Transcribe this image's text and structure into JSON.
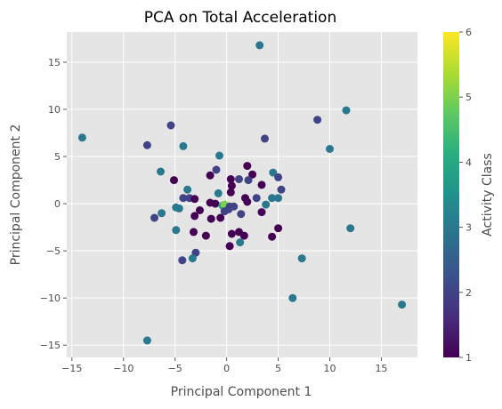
{
  "chart_data": {
    "type": "scatter",
    "title": "PCA on Total Acceleration",
    "xlabel": "Principal Component 1",
    "ylabel": "Principal Component 2",
    "xlim": [
      -15.5,
      18.5
    ],
    "ylim": [
      -16.3,
      18.2
    ],
    "xticks": [
      -15,
      -10,
      -5,
      0,
      5,
      10,
      15
    ],
    "yticks": [
      -15,
      -10,
      -5,
      0,
      5,
      10,
      15
    ],
    "grid": true,
    "colormap": "viridis",
    "colorbar": {
      "label": "Activity Class",
      "min": 1,
      "max": 6,
      "ticks": [
        1,
        2,
        3,
        4,
        5,
        6
      ]
    },
    "background": "#e5e5e5",
    "points": [
      {
        "x": 3.2,
        "y": 16.8,
        "c": 3
      },
      {
        "x": -14.0,
        "y": 7.0,
        "c": 3
      },
      {
        "x": 11.6,
        "y": 9.9,
        "c": 3
      },
      {
        "x": 8.8,
        "y": 8.9,
        "c": 2
      },
      {
        "x": -5.4,
        "y": 8.3,
        "c": 2
      },
      {
        "x": -7.7,
        "y": 6.2,
        "c": 2
      },
      {
        "x": -4.2,
        "y": 6.1,
        "c": 3
      },
      {
        "x": 3.7,
        "y": 6.9,
        "c": 2
      },
      {
        "x": 10.0,
        "y": 5.8,
        "c": 3
      },
      {
        "x": -0.7,
        "y": 5.1,
        "c": 3
      },
      {
        "x": 2.0,
        "y": 4.0,
        "c": 1
      },
      {
        "x": -1.0,
        "y": 3.6,
        "c": 2
      },
      {
        "x": -6.4,
        "y": 3.4,
        "c": 3
      },
      {
        "x": 4.5,
        "y": 3.3,
        "c": 3
      },
      {
        "x": 2.5,
        "y": 3.1,
        "c": 1
      },
      {
        "x": -1.6,
        "y": 3.0,
        "c": 1
      },
      {
        "x": -5.1,
        "y": 2.5,
        "c": 1
      },
      {
        "x": 5.0,
        "y": 2.8,
        "c": 2
      },
      {
        "x": 0.4,
        "y": 2.6,
        "c": 1
      },
      {
        "x": 1.2,
        "y": 2.6,
        "c": 2
      },
      {
        "x": 2.1,
        "y": 2.5,
        "c": 2
      },
      {
        "x": 3.4,
        "y": 2.0,
        "c": 1
      },
      {
        "x": 0.5,
        "y": 1.9,
        "c": 1
      },
      {
        "x": -3.8,
        "y": 1.5,
        "c": 3
      },
      {
        "x": 5.3,
        "y": 1.5,
        "c": 2
      },
      {
        "x": -0.8,
        "y": 1.1,
        "c": 3
      },
      {
        "x": 0.4,
        "y": 1.2,
        "c": 1
      },
      {
        "x": -4.2,
        "y": 0.6,
        "c": 2
      },
      {
        "x": -3.6,
        "y": 0.6,
        "c": 2
      },
      {
        "x": -3.1,
        "y": 0.5,
        "c": 1
      },
      {
        "x": 1.8,
        "y": 0.6,
        "c": 1
      },
      {
        "x": 2.9,
        "y": 0.6,
        "c": 2
      },
      {
        "x": 4.4,
        "y": 0.6,
        "c": 3
      },
      {
        "x": 5.0,
        "y": 0.6,
        "c": 3
      },
      {
        "x": -1.6,
        "y": 0.1,
        "c": 1
      },
      {
        "x": -1.1,
        "y": 0.0,
        "c": 1
      },
      {
        "x": -0.4,
        "y": -0.2,
        "c": 4
      },
      {
        "x": -0.2,
        "y": -0.1,
        "c": 5
      },
      {
        "x": 0.3,
        "y": -0.3,
        "c": 2
      },
      {
        "x": 0.7,
        "y": -0.3,
        "c": 2
      },
      {
        "x": 2.0,
        "y": 0.2,
        "c": 1
      },
      {
        "x": 3.8,
        "y": -0.1,
        "c": 3
      },
      {
        "x": -4.9,
        "y": -0.4,
        "c": 3
      },
      {
        "x": -4.6,
        "y": -0.5,
        "c": 3
      },
      {
        "x": -2.6,
        "y": -0.7,
        "c": 1
      },
      {
        "x": -0.2,
        "y": -0.8,
        "c": 2
      },
      {
        "x": 0.2,
        "y": -0.6,
        "c": 2
      },
      {
        "x": 3.4,
        "y": -0.9,
        "c": 1
      },
      {
        "x": -6.3,
        "y": -1.0,
        "c": 3
      },
      {
        "x": 1.4,
        "y": -1.1,
        "c": 2
      },
      {
        "x": -3.1,
        "y": -1.3,
        "c": 1
      },
      {
        "x": -7.0,
        "y": -1.5,
        "c": 2
      },
      {
        "x": -1.5,
        "y": -1.6,
        "c": 1
      },
      {
        "x": -0.6,
        "y": -1.5,
        "c": 1
      },
      {
        "x": 5.0,
        "y": -2.6,
        "c": 1
      },
      {
        "x": -4.9,
        "y": -2.8,
        "c": 3
      },
      {
        "x": -3.2,
        "y": -3.0,
        "c": 1
      },
      {
        "x": 0.5,
        "y": -3.2,
        "c": 1
      },
      {
        "x": 1.2,
        "y": -3.0,
        "c": 1
      },
      {
        "x": -2.0,
        "y": -3.4,
        "c": 1
      },
      {
        "x": 1.7,
        "y": -3.4,
        "c": 1
      },
      {
        "x": 4.4,
        "y": -3.5,
        "c": 1
      },
      {
        "x": 1.3,
        "y": -4.1,
        "c": 3
      },
      {
        "x": 0.3,
        "y": -4.5,
        "c": 1
      },
      {
        "x": -3.0,
        "y": -5.2,
        "c": 2
      },
      {
        "x": -4.3,
        "y": -6.0,
        "c": 2
      },
      {
        "x": -3.3,
        "y": -5.8,
        "c": 3
      },
      {
        "x": 7.3,
        "y": -5.8,
        "c": 3
      },
      {
        "x": 12.0,
        "y": -2.6,
        "c": 3
      },
      {
        "x": 6.4,
        "y": -10.0,
        "c": 3
      },
      {
        "x": 17.0,
        "y": -10.7,
        "c": 3
      },
      {
        "x": -7.7,
        "y": -14.5,
        "c": 3
      }
    ]
  }
}
